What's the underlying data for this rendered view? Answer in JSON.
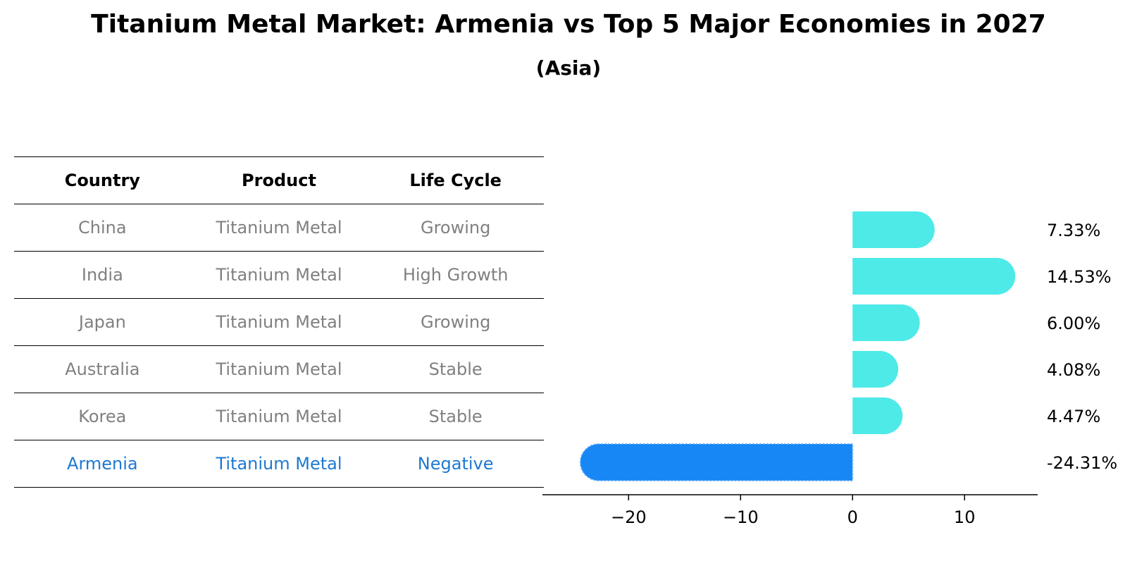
{
  "title": "Titanium Metal Market: Armenia vs Top 5 Major Economies in 2027",
  "subtitle": "(Asia)",
  "table": {
    "headers": [
      "Country",
      "Product",
      "Life Cycle"
    ],
    "rows": [
      [
        "China",
        "Titanium Metal",
        "Growing"
      ],
      [
        "India",
        "Titanium Metal",
        "High Growth"
      ],
      [
        "Japan",
        "Titanium Metal",
        "Growing"
      ],
      [
        "Australia",
        "Titanium Metal",
        "Stable"
      ],
      [
        "Korea",
        "Titanium Metal",
        "Stable"
      ],
      [
        "Armenia",
        "Titanium Metal",
        "Negative"
      ]
    ],
    "highlight_row": 5,
    "colors": {
      "text": "#808080",
      "header": "#000000",
      "highlight": "#1f78d1"
    }
  },
  "chart_data": {
    "type": "bar",
    "orientation": "horizontal",
    "categories": [
      "China",
      "India",
      "Japan",
      "Australia",
      "Korea",
      "Armenia"
    ],
    "values": [
      7.33,
      14.53,
      6.0,
      4.08,
      4.47,
      -24.31
    ],
    "labels": [
      "7.33%",
      "14.53%",
      "6.00%",
      "4.08%",
      "4.47%",
      "-24.31%"
    ],
    "xlim": [
      -26.31,
      16.53
    ],
    "xticks": [
      -20,
      -10,
      0,
      10
    ],
    "xtick_labels": [
      "−20",
      "−10",
      "0",
      "10"
    ],
    "colors": {
      "positive": "#4deae8",
      "negative": "#1787f5"
    }
  }
}
